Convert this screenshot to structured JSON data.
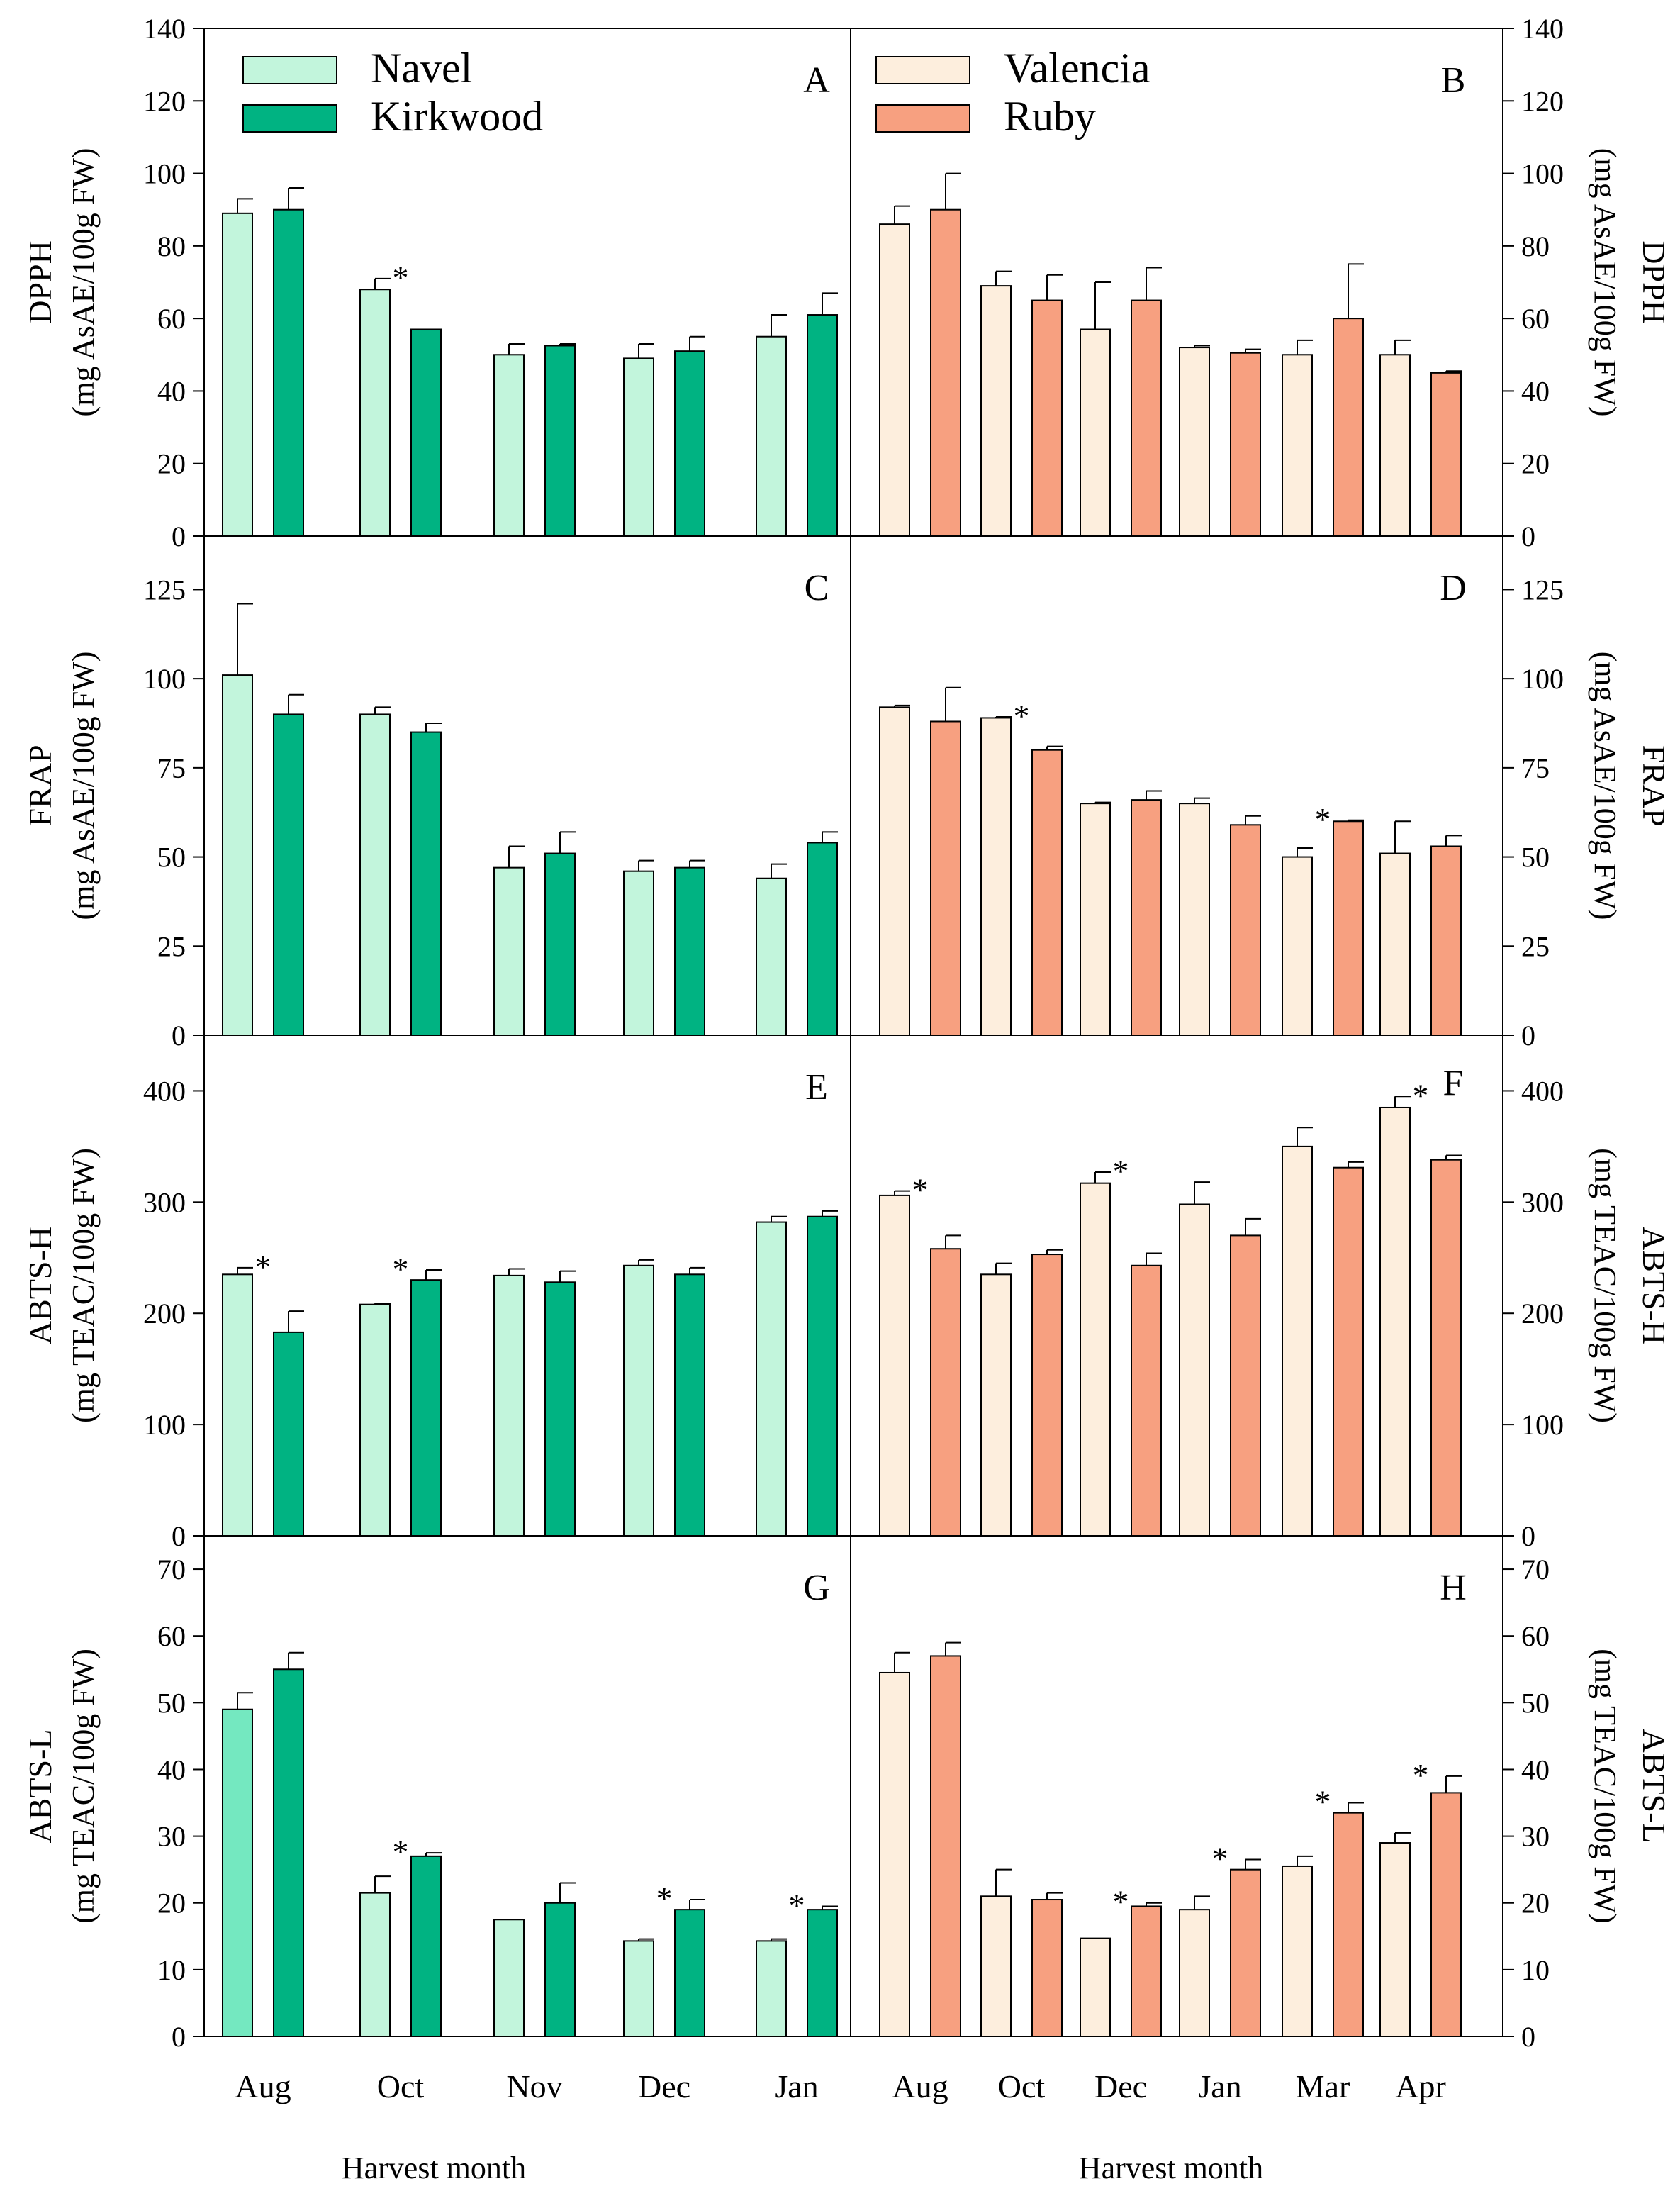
{
  "figure": {
    "xlabel_left": "Harvest month",
    "xlabel_right": "Harvest month"
  },
  "colors": {
    "navel": "#c2f5dc",
    "navel_g": "#74e8c0",
    "kirkwood": "#00b382",
    "valencia": "#fdeedd",
    "ruby": "#f7a080",
    "axis": "#000000"
  },
  "legend": {
    "left": [
      {
        "name": "Navel",
        "color_key": "navel"
      },
      {
        "name": "Kirkwood",
        "color_key": "kirkwood"
      }
    ],
    "right": [
      {
        "name": "Valencia",
        "color_key": "valencia"
      },
      {
        "name": "Ruby",
        "color_key": "ruby"
      }
    ]
  },
  "chart_data": [
    {
      "panel": "A",
      "type": "bar",
      "row": 0,
      "side": "left",
      "ylabel": "DPPH",
      "ylabel2": "(mg AsAE/100g FW)",
      "ylim": [
        0,
        140
      ],
      "yticks": [
        0,
        20,
        40,
        60,
        80,
        100,
        120,
        140
      ],
      "categories": [
        "Aug",
        "Oct",
        "Nov",
        "Dec",
        "Jan"
      ],
      "series": [
        {
          "name": "Navel",
          "color_key": "navel",
          "values": [
            89,
            68,
            50,
            49,
            55
          ],
          "errors": [
            4,
            3,
            3,
            4,
            6
          ]
        },
        {
          "name": "Kirkwood",
          "color_key": "kirkwood",
          "values": [
            90,
            57,
            52.5,
            51,
            61
          ],
          "errors": [
            6,
            0,
            0.5,
            4,
            6
          ]
        }
      ],
      "stars": [
        1
      ]
    },
    {
      "panel": "B",
      "type": "bar",
      "row": 0,
      "side": "right",
      "ylabel": "DPPH",
      "ylabel2": "(mg AsAE/100g FW)",
      "ylim": [
        0,
        140
      ],
      "yticks": [
        0,
        20,
        40,
        60,
        80,
        100,
        120,
        140
      ],
      "categories": [
        "Aug",
        "Oct",
        "Dec",
        "Jan",
        "Mar",
        "Apr"
      ],
      "series": [
        {
          "name": "Valencia",
          "color_key": "valencia",
          "values": [
            86,
            69,
            57,
            52,
            50,
            50
          ],
          "errors": [
            5,
            4,
            13,
            0.5,
            4,
            4
          ]
        },
        {
          "name": "Ruby",
          "color_key": "ruby",
          "values": [
            90,
            65,
            65,
            50.5,
            60,
            45
          ],
          "errors": [
            10,
            7,
            9,
            1,
            15,
            0.5
          ]
        }
      ],
      "stars": []
    },
    {
      "panel": "C",
      "type": "bar",
      "row": 1,
      "side": "left",
      "ylabel": "FRAP",
      "ylabel2": "(mg AsAE/100g FW)",
      "ylim": [
        0,
        140
      ],
      "yticks": [
        0,
        25,
        50,
        75,
        100,
        125
      ],
      "categories": [
        "Aug",
        "Oct",
        "Nov",
        "Dec",
        "Jan"
      ],
      "series": [
        {
          "name": "Navel",
          "color_key": "navel",
          "values": [
            101,
            90,
            47,
            46,
            44
          ],
          "errors": [
            20,
            2,
            6,
            3,
            4
          ]
        },
        {
          "name": "Kirkwood",
          "color_key": "kirkwood",
          "values": [
            90,
            85,
            51,
            47,
            54
          ],
          "errors": [
            5.5,
            2.5,
            6,
            2,
            3
          ]
        }
      ],
      "stars": []
    },
    {
      "panel": "D",
      "type": "bar",
      "row": 1,
      "side": "right",
      "ylabel": "FRAP",
      "ylabel2": "(mg AsAE/100g FW)",
      "ylim": [
        0,
        140
      ],
      "yticks": [
        0,
        25,
        50,
        75,
        100,
        125
      ],
      "categories": [
        "Aug",
        "Oct",
        "Dec",
        "Jan",
        "Mar",
        "Apr"
      ],
      "series": [
        {
          "name": "Valencia",
          "color_key": "valencia",
          "values": [
            92,
            89,
            65,
            65,
            50,
            51
          ],
          "errors": [
            0.5,
            0.3,
            0.3,
            1.5,
            2.5,
            9
          ]
        },
        {
          "name": "Ruby",
          "color_key": "ruby",
          "values": [
            88,
            80,
            66,
            59,
            60,
            53
          ],
          "errors": [
            9.5,
            1,
            2.5,
            2.5,
            0.3,
            3
          ]
        }
      ],
      "stars": [
        1,
        4
      ]
    },
    {
      "panel": "E",
      "type": "bar",
      "row": 2,
      "side": "left",
      "ylabel": "ABTS-H",
      "ylabel2": "(mg TEAC/100g FW)",
      "ylim": [
        0,
        450
      ],
      "yticks": [
        0,
        100,
        200,
        300,
        400
      ],
      "categories": [
        "Aug",
        "Oct",
        "Nov",
        "Dec",
        "Jan"
      ],
      "series": [
        {
          "name": "Navel",
          "color_key": "navel",
          "values": [
            235,
            208,
            234,
            243,
            282
          ],
          "errors": [
            6,
            1,
            6,
            5,
            5
          ]
        },
        {
          "name": "Kirkwood",
          "color_key": "kirkwood",
          "values": [
            183,
            230,
            228,
            235,
            287
          ],
          "errors": [
            19,
            9,
            10,
            6,
            5
          ]
        }
      ],
      "stars": [
        0,
        1
      ]
    },
    {
      "panel": "F",
      "type": "bar",
      "row": 2,
      "side": "right",
      "ylabel": "ABTS-H",
      "ylabel2": "(mg TEAC/100g FW)",
      "ylim": [
        0,
        450
      ],
      "yticks": [
        0,
        100,
        200,
        300,
        400
      ],
      "categories": [
        "Aug",
        "Oct",
        "Dec",
        "Jan",
        "Mar",
        "Apr"
      ],
      "series": [
        {
          "name": "Valencia",
          "color_key": "valencia",
          "values": [
            306,
            235,
            317,
            298,
            350,
            385
          ],
          "errors": [
            4,
            10,
            10,
            20,
            17,
            10
          ]
        },
        {
          "name": "Ruby",
          "color_key": "ruby",
          "values": [
            258,
            253,
            243,
            270,
            331,
            338
          ],
          "errors": [
            12,
            4,
            11,
            15,
            5,
            4
          ]
        }
      ],
      "stars": [
        0,
        2,
        5
      ]
    },
    {
      "panel": "G",
      "type": "bar",
      "row": 3,
      "side": "left",
      "ylabel": "ABTS-L",
      "ylabel2": "(mg TEAC/100g FW)",
      "ylim": [
        0,
        75
      ],
      "yticks": [
        0,
        10,
        20,
        30,
        40,
        50,
        60,
        70
      ],
      "categories": [
        "Aug",
        "Oct",
        "Nov",
        "Dec",
        "Jan"
      ],
      "series": [
        {
          "name": "Navel",
          "color_key": "navel",
          "first_color_key": "navel_g",
          "values": [
            49,
            21.5,
            17.5,
            14.3,
            14.3
          ],
          "errors": [
            2.5,
            2.5,
            0.2,
            0.3,
            0.3
          ]
        },
        {
          "name": "Kirkwood",
          "color_key": "kirkwood",
          "values": [
            55,
            27,
            20,
            19,
            19
          ],
          "errors": [
            2.5,
            0.5,
            3,
            1.5,
            0.5
          ]
        }
      ],
      "stars": [
        1,
        3,
        4
      ]
    },
    {
      "panel": "H",
      "type": "bar",
      "row": 3,
      "side": "right",
      "ylabel": "ABTS-L",
      "ylabel2": "(mg TEAC/100g FW)",
      "ylim": [
        0,
        75
      ],
      "yticks": [
        0,
        10,
        20,
        30,
        40,
        50,
        60,
        70
      ],
      "categories": [
        "Aug",
        "Oct",
        "Dec",
        "Jan",
        "Mar",
        "Apr"
      ],
      "series": [
        {
          "name": "Valencia",
          "color_key": "valencia",
          "values": [
            54.5,
            21,
            14.7,
            19,
            25.5,
            29
          ],
          "errors": [
            3,
            4,
            0.2,
            2,
            1.5,
            1.5
          ]
        },
        {
          "name": "Ruby",
          "color_key": "ruby",
          "values": [
            57,
            20.5,
            19.5,
            25,
            33.5,
            36.5
          ],
          "errors": [
            2,
            1,
            0.5,
            1.5,
            1.5,
            2.5
          ]
        }
      ],
      "stars": [
        2,
        3,
        4,
        5
      ]
    }
  ]
}
